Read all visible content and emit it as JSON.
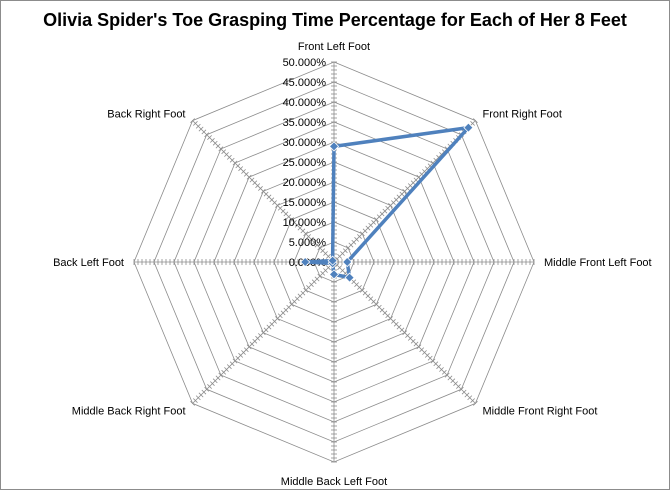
{
  "chart_data": {
    "type": "radar",
    "title": "Olivia Spider's Toe Grasping Time Percentage for Each of Her 8 Feet",
    "categories": [
      "Front Left Foot",
      "Front Right Foot",
      "Middle Front Left Foot",
      "Middle Front Right Foot",
      "Middle Back Left Foot",
      "Middle Back Right Foot",
      "Back Left Foot",
      "Back Right Foot"
    ],
    "series": [
      {
        "values": [
          28.9,
          47.5,
          3.3,
          5.5,
          3.1,
          0.5,
          7.2,
          0.5
        ],
        "color": "#4f81bd"
      }
    ],
    "rlim": [
      0,
      50
    ],
    "tick_labels": [
      "0.000%",
      "5.000%",
      "10.000%",
      "15.000%",
      "20.000%",
      "25.000%",
      "30.000%",
      "35.000%",
      "40.000%",
      "45.000%",
      "50.000%"
    ],
    "grid": true,
    "legend": "none"
  }
}
